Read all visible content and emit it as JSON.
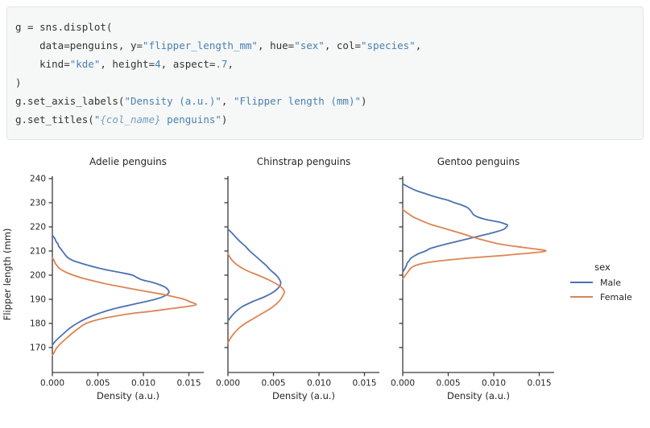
{
  "code_block": {
    "language": "python",
    "lines": [
      [
        {
          "t": "g = sns.displot(",
          "c": "p"
        }
      ],
      [
        {
          "t": "    data=penguins, y=",
          "c": "p"
        },
        {
          "t": "\"flipper_length_mm\"",
          "c": "s"
        },
        {
          "t": ", hue=",
          "c": "p"
        },
        {
          "t": "\"sex\"",
          "c": "s"
        },
        {
          "t": ", col=",
          "c": "p"
        },
        {
          "t": "\"species\"",
          "c": "s"
        },
        {
          "t": ",",
          "c": "p"
        }
      ],
      [
        {
          "t": "    kind=",
          "c": "p"
        },
        {
          "t": "\"kde\"",
          "c": "s"
        },
        {
          "t": ", height=",
          "c": "p"
        },
        {
          "t": "4",
          "c": "n"
        },
        {
          "t": ", aspect=",
          "c": "p"
        },
        {
          "t": ".7",
          "c": "n"
        },
        {
          "t": ",",
          "c": "p"
        }
      ],
      [
        {
          "t": ")",
          "c": "p"
        }
      ],
      [
        {
          "t": "g.set_axis_labels(",
          "c": "p"
        },
        {
          "t": "\"Density (a.u.)\"",
          "c": "s"
        },
        {
          "t": ", ",
          "c": "p"
        },
        {
          "t": "\"Flipper length (mm)\"",
          "c": "s"
        },
        {
          "t": ")",
          "c": "p"
        }
      ],
      [
        {
          "t": "g.set_titles(",
          "c": "p"
        },
        {
          "t": "\"",
          "c": "s"
        },
        {
          "t": "{col_name}",
          "c": "i"
        },
        {
          "t": " penguins\"",
          "c": "s"
        },
        {
          "t": ")",
          "c": "p"
        }
      ]
    ]
  },
  "chart_data": {
    "type": "line",
    "subtype": "kde-density-facets",
    "xlabel": "Density (a.u.)",
    "ylabel": "Flipper length (mm)",
    "xlim": [
      0,
      0.0166
    ],
    "ylim": [
      160,
      241
    ],
    "xticks": [
      0.0,
      0.005,
      0.01,
      0.015
    ],
    "xtick_labels": [
      "0.000",
      "0.005",
      "0.010",
      "0.015"
    ],
    "yticks": [
      170,
      180,
      190,
      200,
      210,
      220,
      230,
      240
    ],
    "grid": false,
    "colors": {
      "male": "#4c72b0",
      "female": "#dd8452",
      "axis": "#3a3a3a",
      "text": "#262626"
    },
    "legend": {
      "title": "sex",
      "position": "right",
      "entries": [
        {
          "label": "Male",
          "color": "#4c72b0"
        },
        {
          "label": "Female",
          "color": "#dd8452"
        }
      ]
    },
    "facets": [
      {
        "title": "Adelie penguins",
        "series": [
          {
            "name": "Male",
            "color": "#4c72b0",
            "points": [
              [
                171,
                0
              ],
              [
                172.5,
                0.0003
              ],
              [
                174,
                0.0007
              ],
              [
                176,
                0.0013
              ],
              [
                178,
                0.0019
              ],
              [
                180,
                0.0027
              ],
              [
                182,
                0.0037
              ],
              [
                184,
                0.005
              ],
              [
                186,
                0.0067
              ],
              [
                188,
                0.009
              ],
              [
                190,
                0.0113
              ],
              [
                191.5,
                0.0124
              ],
              [
                192.8,
                0.0128
              ],
              [
                194,
                0.0127
              ],
              [
                195,
                0.0124
              ],
              [
                196,
                0.0118
              ],
              [
                197,
                0.011
              ],
              [
                198,
                0.0099
              ],
              [
                199,
                0.0093
              ],
              [
                200,
                0.0088
              ],
              [
                201,
                0.0076
              ],
              [
                202,
                0.0062
              ],
              [
                203,
                0.005
              ],
              [
                204,
                0.004
              ],
              [
                205,
                0.0031
              ],
              [
                206,
                0.0023
              ],
              [
                207,
                0.0018
              ],
              [
                208,
                0.0015
              ],
              [
                209,
                0.0013
              ],
              [
                210,
                0.0011
              ],
              [
                211,
                0.0009
              ],
              [
                212,
                0.0007
              ],
              [
                213,
                0.0006
              ],
              [
                214,
                0.0004
              ],
              [
                215,
                0.0003
              ],
              [
                216.5,
                0
              ]
            ]
          },
          {
            "name": "Female",
            "color": "#dd8452",
            "points": [
              [
                166.8,
                0
              ],
              [
                168,
                0.0002
              ],
              [
                170,
                0.0005
              ],
              [
                172,
                0.001
              ],
              [
                174,
                0.0016
              ],
              [
                176,
                0.0022
              ],
              [
                178,
                0.0029
              ],
              [
                180,
                0.0037
              ],
              [
                182,
                0.0055
              ],
              [
                184,
                0.0085
              ],
              [
                185,
                0.0108
              ],
              [
                186,
                0.0128
              ],
              [
                187,
                0.0148
              ],
              [
                187.8,
                0.0158
              ],
              [
                189,
                0.0151
              ],
              [
                190,
                0.0145
              ],
              [
                191,
                0.0134
              ],
              [
                192,
                0.0122
              ],
              [
                193,
                0.0107
              ],
              [
                194,
                0.0092
              ],
              [
                195,
                0.0078
              ],
              [
                196,
                0.0064
              ],
              [
                197,
                0.0052
              ],
              [
                198,
                0.0041
              ],
              [
                199,
                0.0031
              ],
              [
                200,
                0.0023
              ],
              [
                201,
                0.0016
              ],
              [
                202,
                0.0011
              ],
              [
                203,
                0.0007
              ],
              [
                204,
                0.0005
              ],
              [
                205,
                0.0003
              ],
              [
                206,
                0.0002
              ],
              [
                207.2,
                0
              ]
            ]
          }
        ]
      },
      {
        "title": "Chinstrap penguins",
        "series": [
          {
            "name": "Male",
            "color": "#4c72b0",
            "points": [
              [
                181,
                0
              ],
              [
                183,
                0.0004
              ],
              [
                185,
                0.0009
              ],
              [
                187,
                0.0016
              ],
              [
                189,
                0.0027
              ],
              [
                191,
                0.004
              ],
              [
                193,
                0.005
              ],
              [
                195,
                0.0056
              ],
              [
                196.5,
                0.0058
              ],
              [
                198,
                0.0057
              ],
              [
                200,
                0.0053
              ],
              [
                202,
                0.0047
              ],
              [
                204,
                0.0042
              ],
              [
                206,
                0.0036
              ],
              [
                208,
                0.003
              ],
              [
                210,
                0.0024
              ],
              [
                212,
                0.0019
              ],
              [
                214,
                0.0013
              ],
              [
                216,
                0.0008
              ],
              [
                218,
                0.0003
              ],
              [
                219,
                0
              ]
            ]
          },
          {
            "name": "Female",
            "color": "#dd8452",
            "points": [
              [
                172,
                0
              ],
              [
                174,
                0.0003
              ],
              [
                176,
                0.0007
              ],
              [
                178,
                0.0012
              ],
              [
                180,
                0.0019
              ],
              [
                182,
                0.0028
              ],
              [
                184,
                0.0037
              ],
              [
                186,
                0.0046
              ],
              [
                188,
                0.0053
              ],
              [
                190,
                0.0058
              ],
              [
                192,
                0.0061
              ],
              [
                193,
                0.0062
              ],
              [
                194.5,
                0.006
              ],
              [
                196,
                0.0055
              ],
              [
                198,
                0.0045
              ],
              [
                200,
                0.0033
              ],
              [
                202,
                0.002
              ],
              [
                204,
                0.0011
              ],
              [
                206,
                0.0005
              ],
              [
                207.5,
                0.0002
              ],
              [
                209,
                0
              ]
            ]
          }
        ]
      },
      {
        "title": "Gentoo penguins",
        "series": [
          {
            "name": "Male",
            "color": "#4c72b0",
            "points": [
              [
                201.3,
                0
              ],
              [
                202.5,
                0.0002
              ],
              [
                204,
                0.0004
              ],
              [
                205,
                0.0005
              ],
              [
                206,
                0.0007
              ],
              [
                207,
                0.0009
              ],
              [
                208,
                0.0013
              ],
              [
                209,
                0.0018
              ],
              [
                210,
                0.0025
              ],
              [
                211,
                0.003
              ],
              [
                212,
                0.0039
              ],
              [
                213,
                0.0049
              ],
              [
                214,
                0.006
              ],
              [
                215,
                0.0071
              ],
              [
                216,
                0.0082
              ],
              [
                217,
                0.0093
              ],
              [
                218,
                0.0103
              ],
              [
                219,
                0.0111
              ],
              [
                220,
                0.0114
              ],
              [
                220.5,
                0.0115
              ],
              [
                221,
                0.0114
              ],
              [
                222,
                0.0106
              ],
              [
                223,
                0.0092
              ],
              [
                224,
                0.0083
              ],
              [
                225,
                0.0078
              ],
              [
                226,
                0.0076
              ],
              [
                227,
                0.0074
              ],
              [
                228,
                0.0071
              ],
              [
                229,
                0.0065
              ],
              [
                230,
                0.0057
              ],
              [
                231,
                0.005
              ],
              [
                232,
                0.004
              ],
              [
                233,
                0.0031
              ],
              [
                234,
                0.0023
              ],
              [
                235,
                0.0015
              ],
              [
                236,
                0.0009
              ],
              [
                237,
                0.0004
              ],
              [
                237.8,
                0
              ]
            ]
          },
          {
            "name": "Female",
            "color": "#dd8452",
            "points": [
              [
                198.5,
                0
              ],
              [
                199.5,
                0.0002
              ],
              [
                200.5,
                0.0004
              ],
              [
                201.5,
                0.0006
              ],
              [
                202.5,
                0.0008
              ],
              [
                203.2,
                0.001
              ],
              [
                204,
                0.0014
              ],
              [
                205,
                0.0024
              ],
              [
                206,
                0.0043
              ],
              [
                207,
                0.007
              ],
              [
                208,
                0.0105
              ],
              [
                208.5,
                0.012
              ],
              [
                209.5,
                0.0149
              ],
              [
                210.2,
                0.0157
              ],
              [
                211,
                0.0142
              ],
              [
                211.5,
                0.0132
              ],
              [
                212,
                0.0122
              ],
              [
                213,
                0.0105
              ],
              [
                214,
                0.0094
              ],
              [
                215,
                0.0084
              ],
              [
                216,
                0.0075
              ],
              [
                217,
                0.0067
              ],
              [
                218,
                0.0058
              ],
              [
                219,
                0.0049
              ],
              [
                220,
                0.004
              ],
              [
                221,
                0.0031
              ],
              [
                222,
                0.0024
              ],
              [
                223,
                0.0018
              ],
              [
                224,
                0.0012
              ],
              [
                225,
                0.0008
              ],
              [
                226,
                0.0004
              ],
              [
                227.2,
                0
              ]
            ]
          }
        ]
      }
    ]
  }
}
